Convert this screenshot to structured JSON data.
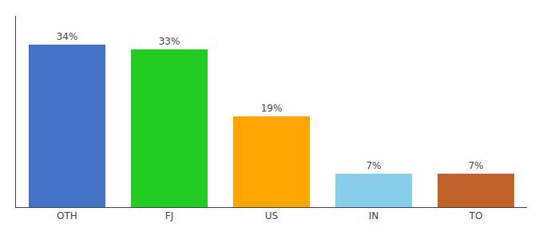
{
  "chart_data": {
    "type": "bar",
    "categories": [
      "OTH",
      "FJ",
      "US",
      "IN",
      "TO"
    ],
    "values": [
      34,
      33,
      19,
      7,
      7
    ],
    "value_labels": [
      "34%",
      "33%",
      "19%",
      "7%",
      "7%"
    ],
    "data_labels": true,
    "colors": [
      "#4472c4",
      "#22cc22",
      "#ffa500",
      "#87ceeb",
      "#c0622a"
    ],
    "ylim": [
      0,
      40
    ],
    "grid": false,
    "tick_labels": "x"
  }
}
